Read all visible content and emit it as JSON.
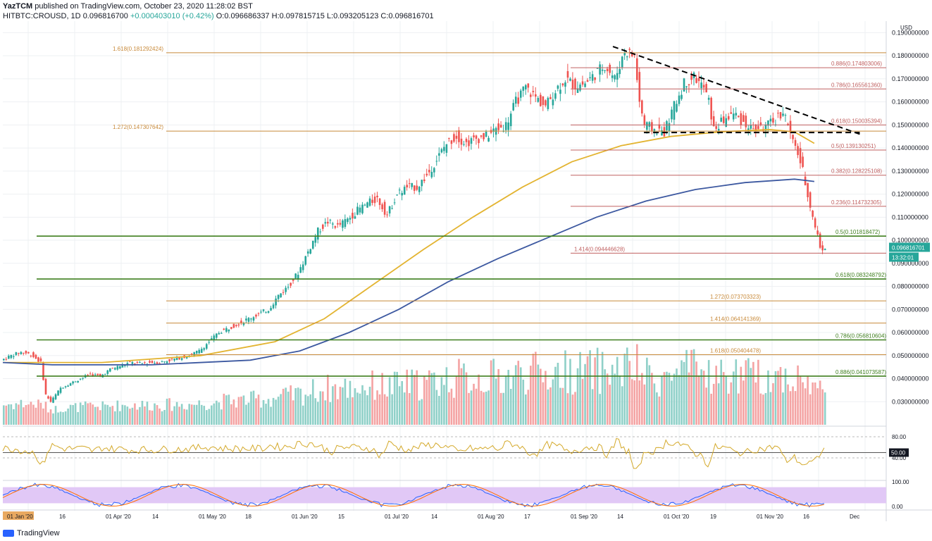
{
  "header": {
    "author": "YazTCM",
    "published": "published on TradingView.com, October 23, 2020 11:28:02 BST",
    "symbol": "HITBTC:CROUSD, 1D",
    "last": "0.096816700",
    "change": "+0.000403010 (+0.42%)",
    "open": "O:0.096686337",
    "high": "H:0.097815715",
    "low": "L:0.093205123",
    "close": "C:0.096816701"
  },
  "footer": {
    "brand": "TradingView"
  },
  "colors": {
    "up": "#26a69a",
    "down": "#ef5350",
    "vol_up": "#8fd0c8",
    "vol_down": "#f4a3a3",
    "ma_short": "#e3b431",
    "ma_long": "#3c58a0",
    "support": "#3f7f1f",
    "fib": "#c88a3a",
    "fib_red": "#c06060",
    "rsi": "#d4a92a",
    "stoch_bg": "#e1c8f6"
  },
  "chart_data": {
    "type": "candlestick",
    "currency": "USD",
    "ylim": [
      0.02,
      0.195
    ],
    "y_ticks": [
      "0.190000000",
      "0.180000000",
      "0.170000000",
      "0.160000000",
      "0.150000000",
      "0.140000000",
      "0.130000000",
      "0.120000000",
      "0.110000000",
      "0.100000000",
      "0.090000000",
      "0.080000000",
      "0.070000000",
      "0.060000000",
      "0.050000000",
      "0.040000000",
      "0.030000000"
    ],
    "x_ticks": [
      "01 Jan '20",
      "16",
      "01 Apr '20",
      "14",
      "01 May '20",
      "18",
      "01 Jun '20",
      "15",
      "01 Jul '20",
      "14",
      "01 Aug '20",
      "17",
      "01 Sep '20",
      "14",
      "01 Oct '20",
      "19",
      "01 Nov '20",
      "16",
      "Dec"
    ],
    "price_label": "0.096816701",
    "countdown_label": "13:32:01",
    "price_path": [
      [
        0,
        0.048
      ],
      [
        4,
        0.05
      ],
      [
        8,
        0.0515
      ],
      [
        12,
        0.0505
      ],
      [
        16,
        0.047
      ],
      [
        18,
        0.033
      ],
      [
        20,
        0.03
      ],
      [
        24,
        0.036
      ],
      [
        28,
        0.038
      ],
      [
        32,
        0.04
      ],
      [
        36,
        0.042
      ],
      [
        40,
        0.041
      ],
      [
        44,
        0.044
      ],
      [
        48,
        0.0455
      ],
      [
        52,
        0.047
      ],
      [
        56,
        0.0465
      ],
      [
        60,
        0.047
      ],
      [
        64,
        0.047
      ],
      [
        68,
        0.048
      ],
      [
        72,
        0.049
      ],
      [
        76,
        0.05
      ],
      [
        80,
        0.052
      ],
      [
        84,
        0.056
      ],
      [
        88,
        0.06
      ],
      [
        92,
        0.062
      ],
      [
        96,
        0.064
      ],
      [
        100,
        0.066
      ],
      [
        104,
        0.068
      ],
      [
        108,
        0.07
      ],
      [
        112,
        0.076
      ],
      [
        116,
        0.08
      ],
      [
        120,
        0.086
      ],
      [
        124,
        0.095
      ],
      [
        128,
        0.104
      ],
      [
        132,
        0.108
      ],
      [
        136,
        0.106
      ],
      [
        140,
        0.109
      ],
      [
        144,
        0.113
      ],
      [
        148,
        0.116
      ],
      [
        152,
        0.118
      ],
      [
        156,
        0.111
      ],
      [
        160,
        0.12
      ],
      [
        164,
        0.123
      ],
      [
        168,
        0.123
      ],
      [
        172,
        0.128
      ],
      [
        176,
        0.135
      ],
      [
        180,
        0.142
      ],
      [
        184,
        0.145
      ],
      [
        188,
        0.142
      ],
      [
        192,
        0.144
      ],
      [
        196,
        0.145
      ],
      [
        200,
        0.148
      ],
      [
        204,
        0.15
      ],
      [
        208,
        0.16
      ],
      [
        212,
        0.166
      ],
      [
        216,
        0.162
      ],
      [
        220,
        0.158
      ],
      [
        224,
        0.165
      ],
      [
        228,
        0.17
      ],
      [
        232,
        0.167
      ],
      [
        236,
        0.168
      ],
      [
        240,
        0.172
      ],
      [
        244,
        0.176
      ],
      [
        248,
        0.17
      ],
      [
        252,
        0.182
      ],
      [
        256,
        0.18
      ],
      [
        258,
        0.16
      ],
      [
        260,
        0.15
      ],
      [
        264,
        0.148
      ],
      [
        268,
        0.147
      ],
      [
        272,
        0.158
      ],
      [
        276,
        0.168
      ],
      [
        280,
        0.171
      ],
      [
        284,
        0.166
      ],
      [
        286,
        0.16
      ],
      [
        288,
        0.148
      ],
      [
        292,
        0.152
      ],
      [
        296,
        0.155
      ],
      [
        300,
        0.151
      ],
      [
        304,
        0.148
      ],
      [
        308,
        0.149
      ],
      [
        312,
        0.151
      ],
      [
        316,
        0.156
      ],
      [
        318,
        0.15
      ],
      [
        320,
        0.142
      ],
      [
        322,
        0.138
      ],
      [
        324,
        0.13
      ],
      [
        326,
        0.12
      ],
      [
        328,
        0.11
      ],
      [
        330,
        0.102
      ],
      [
        331,
        0.097
      ],
      [
        332,
        0.0968
      ]
    ],
    "ma_short": [
      [
        0,
        0.047
      ],
      [
        40,
        0.047
      ],
      [
        80,
        0.05
      ],
      [
        110,
        0.056
      ],
      [
        130,
        0.066
      ],
      [
        150,
        0.081
      ],
      [
        170,
        0.096
      ],
      [
        190,
        0.11
      ],
      [
        210,
        0.123
      ],
      [
        230,
        0.134
      ],
      [
        250,
        0.141
      ],
      [
        270,
        0.145
      ],
      [
        290,
        0.147
      ],
      [
        310,
        0.148
      ],
      [
        320,
        0.147
      ],
      [
        328,
        0.142
      ]
    ],
    "ma_long": [
      [
        0,
        0.047
      ],
      [
        20,
        0.046
      ],
      [
        60,
        0.046
      ],
      [
        100,
        0.048
      ],
      [
        120,
        0.052
      ],
      [
        140,
        0.06
      ],
      [
        160,
        0.07
      ],
      [
        180,
        0.082
      ],
      [
        200,
        0.092
      ],
      [
        220,
        0.101
      ],
      [
        240,
        0.11
      ],
      [
        260,
        0.117
      ],
      [
        280,
        0.122
      ],
      [
        300,
        0.125
      ],
      [
        320,
        0.1265
      ],
      [
        328,
        0.1255
      ]
    ],
    "horizontal_levels": [
      {
        "label": "1.618(0.181292424)",
        "value": 0.1813,
        "kind": "fib"
      },
      {
        "label": "0.886(0.174803006)",
        "value": 0.1748,
        "kind": "fib_red"
      },
      {
        "label": "0.786(0.165561360)",
        "value": 0.1656,
        "kind": "fib_red"
      },
      {
        "label": "1.272(0.147307642)",
        "value": 0.1473,
        "kind": "fib"
      },
      {
        "label": "0.618(0.150035394)",
        "value": 0.15,
        "kind": "fib_red"
      },
      {
        "label": "0.5(0.139130251)",
        "value": 0.1391,
        "kind": "fib_red"
      },
      {
        "label": "0.382(0.128225108)",
        "value": 0.1282,
        "kind": "fib_red"
      },
      {
        "label": "0.236(0.114732305)",
        "value": 0.1147,
        "kind": "fib_red"
      },
      {
        "label": "0.5(0.101818472)",
        "value": 0.1018,
        "kind": "support"
      },
      {
        "label": "1.414(0.094446628)",
        "value": 0.0944,
        "kind": "fib_red"
      },
      {
        "label": "0.618(0.083248792)",
        "value": 0.0832,
        "kind": "support"
      },
      {
        "label": "1.272(0.073703323)",
        "value": 0.0737,
        "kind": "fib"
      },
      {
        "label": "1.414(0.064141369)",
        "value": 0.0641,
        "kind": "fib"
      },
      {
        "label": "0.786(0.056810604)",
        "value": 0.0568,
        "kind": "support"
      },
      {
        "label": "1.618(0.050404478)",
        "value": 0.0504,
        "kind": "fib"
      },
      {
        "label": "0.886(0.041073587)",
        "value": 0.0411,
        "kind": "support"
      }
    ],
    "rsi": {
      "ticks": [
        "80.00",
        "50.00",
        "40.00"
      ],
      "current_label": "50.00"
    },
    "stoch": {
      "ticks": [
        "100.00",
        "0.00"
      ]
    }
  }
}
